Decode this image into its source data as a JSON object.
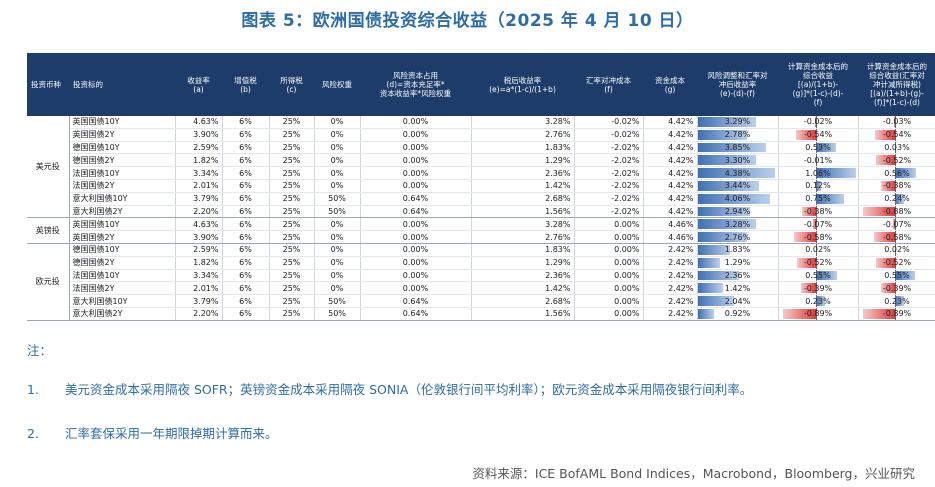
{
  "title": "图表 5：欧洲国债投资综合收益（2025 年 4 月 10 日）",
  "headers": [
    "投资币种",
    "投资标的",
    "收益率\n(a)",
    "增值税\n(b)",
    "所得税\n(c)",
    "风险权重",
    "风险资本占用\n(d)=资本充足率*\n资本收益率*风险权重",
    "税后收益率\n(e)=a*(1-c)/(1+b)",
    "汇率对冲成本\n(f)",
    "资金成本\n(g)",
    "风险调整和汇率对\n冲后收益率\n(e)-(d)-(f)",
    "计算资金成本后的\n综合收益\n[(a)/(1+b)-\n(g)]*(1-c)-(d)-\n(f)",
    "计算资金成本后的\n综合收益(汇率对\n冲计减所得税)\n[(a)/(1+b)-(g)-\n(f)]*(1-c)-(d)"
  ],
  "groups": [
    {
      "currency": "美元投",
      "rows": [
        {
          "name": "英国国债10Y",
          "a": "4.63%",
          "b": "6%",
          "c": "25%",
          "w": "0%",
          "d": "0.00%",
          "e": "3.28%",
          "f": "-0.02%",
          "g": "4.42%",
          "h": "3.29%",
          "i": "-0.02%",
          "j": "-0.03%",
          "hv": 3.29,
          "iv": -0.02,
          "jv": -0.03
        },
        {
          "name": "英国国债2Y",
          "a": "3.90%",
          "b": "6%",
          "c": "25%",
          "w": "0%",
          "d": "0.00%",
          "e": "2.76%",
          "f": "-0.02%",
          "g": "4.42%",
          "h": "2.78%",
          "i": "-0.54%",
          "j": "-0.54%",
          "hv": 2.78,
          "iv": -0.54,
          "jv": -0.54
        },
        {
          "name": "德国国债10Y",
          "a": "2.59%",
          "b": "6%",
          "c": "25%",
          "w": "0%",
          "d": "0.00%",
          "e": "1.83%",
          "f": "-2.02%",
          "g": "4.42%",
          "h": "3.85%",
          "i": "0.53%",
          "j": "0.03%",
          "hv": 3.85,
          "iv": 0.53,
          "jv": 0.03
        },
        {
          "name": "德国国债2Y",
          "a": "1.82%",
          "b": "6%",
          "c": "25%",
          "w": "0%",
          "d": "0.00%",
          "e": "1.29%",
          "f": "-2.02%",
          "g": "4.42%",
          "h": "3.30%",
          "i": "-0.01%",
          "j": "-0.52%",
          "hv": 3.3,
          "iv": -0.01,
          "jv": -0.52
        },
        {
          "name": "法国国债10Y",
          "a": "3.34%",
          "b": "6%",
          "c": "25%",
          "w": "0%",
          "d": "0.00%",
          "e": "2.36%",
          "f": "-2.02%",
          "g": "4.42%",
          "h": "4.38%",
          "i": "1.06%",
          "j": "0.56%",
          "hv": 4.38,
          "iv": 1.06,
          "jv": 0.56
        },
        {
          "name": "法国国债2Y",
          "a": "2.01%",
          "b": "6%",
          "c": "25%",
          "w": "0%",
          "d": "0.00%",
          "e": "1.42%",
          "f": "-2.02%",
          "g": "4.42%",
          "h": "3.44%",
          "i": "0.12%",
          "j": "-0.38%",
          "hv": 3.44,
          "iv": 0.12,
          "jv": -0.38
        },
        {
          "name": "意大利国债10Y",
          "a": "3.79%",
          "b": "6%",
          "c": "25%",
          "w": "50%",
          "d": "0.64%",
          "e": "2.68%",
          "f": "-2.02%",
          "g": "4.42%",
          "h": "4.06%",
          "i": "0.75%",
          "j": "0.24%",
          "hv": 4.06,
          "iv": 0.75,
          "jv": 0.24
        },
        {
          "name": "意大利国债2Y",
          "a": "2.20%",
          "b": "6%",
          "c": "25%",
          "w": "50%",
          "d": "0.64%",
          "e": "1.56%",
          "f": "-2.02%",
          "g": "4.42%",
          "h": "2.94%",
          "i": "-0.38%",
          "j": "-0.88%",
          "hv": 2.94,
          "iv": -0.38,
          "jv": -0.88
        }
      ]
    },
    {
      "currency": "英镑投",
      "rows": [
        {
          "name": "英国国债10Y",
          "a": "4.63%",
          "b": "6%",
          "c": "25%",
          "w": "0%",
          "d": "0.00%",
          "e": "3.28%",
          "f": "0.00%",
          "g": "4.46%",
          "h": "3.28%",
          "i": "-0.07%",
          "j": "-0.07%",
          "hv": 3.28,
          "iv": -0.07,
          "jv": -0.07
        },
        {
          "name": "英国国债2Y",
          "a": "3.90%",
          "b": "6%",
          "c": "25%",
          "w": "0%",
          "d": "0.00%",
          "e": "2.76%",
          "f": "0.00%",
          "g": "4.46%",
          "h": "2.76%",
          "i": "-0.58%",
          "j": "-0.58%",
          "hv": 2.76,
          "iv": -0.58,
          "jv": -0.58
        }
      ]
    },
    {
      "currency": "欧元投",
      "rows": [
        {
          "name": "德国国债10Y",
          "a": "2.59%",
          "b": "6%",
          "c": "25%",
          "w": "0%",
          "d": "0.00%",
          "e": "1.83%",
          "f": "0.00%",
          "g": "2.42%",
          "h": "1.83%",
          "i": "0.02%",
          "j": "0.02%",
          "hv": 1.83,
          "iv": 0.02,
          "jv": 0.02
        },
        {
          "name": "德国国债2Y",
          "a": "1.82%",
          "b": "6%",
          "c": "25%",
          "w": "0%",
          "d": "0.00%",
          "e": "1.29%",
          "f": "0.00%",
          "g": "2.42%",
          "h": "1.29%",
          "i": "-0.52%",
          "j": "-0.52%",
          "hv": 1.29,
          "iv": -0.52,
          "jv": -0.52
        },
        {
          "name": "法国国债10Y",
          "a": "3.34%",
          "b": "6%",
          "c": "25%",
          "w": "0%",
          "d": "0.00%",
          "e": "2.36%",
          "f": "0.00%",
          "g": "2.42%",
          "h": "2.36%",
          "i": "0.55%",
          "j": "0.55%",
          "hv": 2.36,
          "iv": 0.55,
          "jv": 0.55
        },
        {
          "name": "法国国债2Y",
          "a": "2.01%",
          "b": "6%",
          "c": "25%",
          "w": "0%",
          "d": "0.00%",
          "e": "1.42%",
          "f": "0.00%",
          "g": "2.42%",
          "h": "1.42%",
          "i": "-0.39%",
          "j": "-0.39%",
          "hv": 1.42,
          "iv": -0.39,
          "jv": -0.39
        },
        {
          "name": "意大利国债10Y",
          "a": "3.79%",
          "b": "6%",
          "c": "25%",
          "w": "50%",
          "d": "0.64%",
          "e": "2.68%",
          "f": "0.00%",
          "g": "2.42%",
          "h": "2.04%",
          "i": "0.23%",
          "j": "0.23%",
          "hv": 2.04,
          "iv": 0.23,
          "jv": 0.23
        },
        {
          "name": "意大利国债2Y",
          "a": "2.20%",
          "b": "6%",
          "c": "25%",
          "w": "50%",
          "d": "0.64%",
          "e": "1.56%",
          "f": "0.00%",
          "g": "2.42%",
          "h": "0.92%",
          "i": "-0.89%",
          "j": "-0.89%",
          "hv": 0.92,
          "iv": -0.89,
          "jv": -0.89
        }
      ]
    }
  ],
  "notes_label": "注：",
  "notes": [
    {
      "num": "1.",
      "text": "美元资金成本采用隔夜 SOFR；英镑资金成本采用隔夜 SONIA（伦敦银行间平均利率）；欧元资金成本采用隔夜银行间利率。"
    },
    {
      "num": "2.",
      "text": "汇率套保采用一年期限掉期计算而来。"
    }
  ],
  "source": "资料来源：ICE BofAML Bond Indices，Macrobond，Bloomberg，兴业研究",
  "colors": {
    "header_bg": "#1e3c6a",
    "positive_bar": "#3f6fb4",
    "negative_bar": "#e03a3a",
    "title": "#2e6da4"
  }
}
